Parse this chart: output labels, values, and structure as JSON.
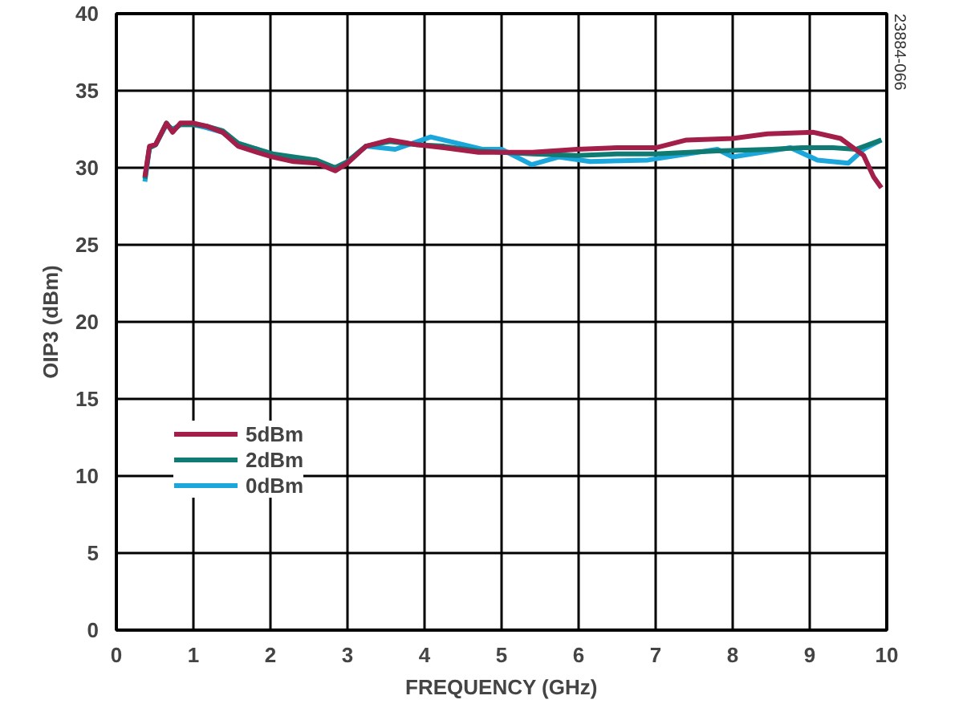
{
  "chart_data": {
    "type": "line",
    "xlabel": "FREQUENCY (GHz)",
    "ylabel": "OIP3 (dBm)",
    "xlim": [
      0,
      10
    ],
    "ylim": [
      0,
      40
    ],
    "xticks": [
      0,
      1,
      2,
      3,
      4,
      5,
      6,
      7,
      8,
      9,
      10
    ],
    "yticks": [
      0,
      5,
      10,
      15,
      20,
      25,
      30,
      35,
      40
    ],
    "grid": true,
    "legend": "bottom left",
    "line_style": "solid",
    "annotations": [
      "23884-066"
    ],
    "series": [
      {
        "name": "5dBm",
        "color": "#a31f4a",
        "x": [
          0.37,
          0.43,
          0.51,
          0.65,
          0.73,
          0.83,
          1.0,
          1.17,
          1.38,
          1.58,
          1.83,
          2.03,
          2.3,
          2.6,
          2.84,
          3.0,
          3.24,
          3.55,
          3.9,
          4.25,
          4.7,
          5.0,
          5.4,
          5.98,
          6.5,
          7.0,
          7.4,
          8.0,
          8.45,
          9.05,
          9.4,
          9.7,
          9.83,
          9.93
        ],
        "values": [
          29.4,
          31.4,
          31.5,
          32.9,
          32.3,
          32.9,
          32.9,
          32.7,
          32.3,
          31.4,
          31.0,
          30.7,
          30.4,
          30.3,
          29.8,
          30.3,
          31.4,
          31.8,
          31.5,
          31.3,
          31.0,
          31.0,
          31.0,
          31.2,
          31.3,
          31.3,
          31.8,
          31.9,
          32.2,
          32.3,
          31.9,
          30.8,
          29.4,
          28.7
        ]
      },
      {
        "name": "2dBm",
        "color": "#0f7b73",
        "x": [
          0.37,
          0.43,
          0.51,
          0.65,
          0.73,
          0.83,
          1.0,
          1.17,
          1.38,
          1.58,
          1.83,
          2.03,
          2.3,
          2.6,
          2.84,
          3.0,
          3.24,
          3.55,
          3.9,
          4.25,
          4.7,
          5.0,
          5.4,
          5.98,
          6.5,
          7.0,
          7.8,
          8.5,
          8.9,
          9.3,
          9.6,
          9.93
        ],
        "values": [
          29.3,
          31.3,
          31.5,
          32.9,
          32.4,
          32.8,
          32.8,
          32.7,
          32.4,
          31.6,
          31.2,
          30.9,
          30.7,
          30.5,
          30.0,
          30.4,
          31.4,
          31.7,
          31.5,
          31.4,
          31.1,
          31.0,
          30.9,
          30.8,
          30.9,
          30.9,
          31.1,
          31.2,
          31.3,
          31.3,
          31.2,
          31.8
        ]
      },
      {
        "name": "0dBm",
        "color": "#1ba6dc",
        "x": [
          0.37,
          0.43,
          0.51,
          0.65,
          0.73,
          0.83,
          1.0,
          1.17,
          1.38,
          1.58,
          1.83,
          2.03,
          2.3,
          2.6,
          2.84,
          3.0,
          3.24,
          3.62,
          4.08,
          4.5,
          4.75,
          5.0,
          5.39,
          5.74,
          6.15,
          6.9,
          7.8,
          8.0,
          8.75,
          9.1,
          9.5,
          9.7,
          9.93
        ],
        "values": [
          29.1,
          31.3,
          31.5,
          32.8,
          32.5,
          32.8,
          32.8,
          32.6,
          32.3,
          31.5,
          31.2,
          30.8,
          30.6,
          30.4,
          30.0,
          30.4,
          31.4,
          31.2,
          32.0,
          31.5,
          31.2,
          31.2,
          30.2,
          30.7,
          30.4,
          30.5,
          31.2,
          30.7,
          31.3,
          30.5,
          30.3,
          31.2,
          31.8
        ]
      }
    ]
  }
}
